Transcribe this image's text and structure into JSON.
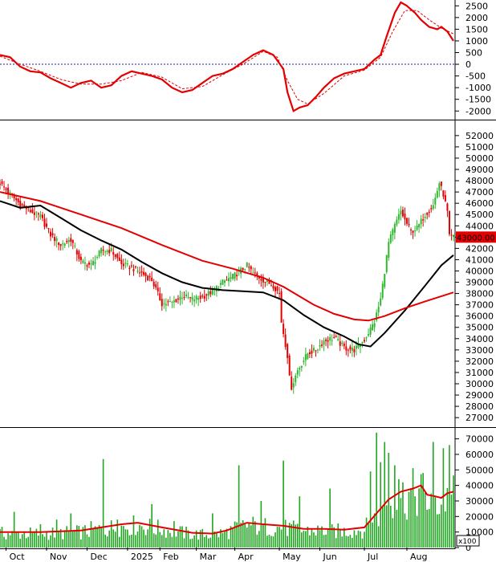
{
  "chart_data": [
    {
      "panel": "oscillator",
      "type": "line",
      "y_ticks": [
        2500,
        2000,
        1500,
        1000,
        500,
        0,
        -500,
        -1000,
        -1500,
        -2000
      ],
      "y_tick_labels": [
        "2500",
        "2000",
        "1500",
        "1000",
        "500",
        "0",
        "-500",
        "-1000",
        "-1500",
        "-2000"
      ],
      "ylim": [
        -2300,
        2750
      ],
      "zero_line": "dotted",
      "series": [
        {
          "color": "#e30000",
          "style": "solid",
          "points": [
            [
              0,
              400
            ],
            [
              5,
              300
            ],
            [
              10,
              -100
            ],
            [
              15,
              -300
            ],
            [
              20,
              -350
            ],
            [
              25,
              -600
            ],
            [
              30,
              -800
            ],
            [
              35,
              -1000
            ],
            [
              40,
              -800
            ],
            [
              45,
              -700
            ],
            [
              50,
              -1000
            ],
            [
              55,
              -900
            ],
            [
              60,
              -500
            ],
            [
              65,
              -300
            ],
            [
              70,
              -400
            ],
            [
              75,
              -500
            ],
            [
              80,
              -650
            ],
            [
              85,
              -1000
            ],
            [
              90,
              -1200
            ],
            [
              95,
              -1100
            ],
            [
              100,
              -800
            ],
            [
              105,
              -500
            ],
            [
              110,
              -400
            ],
            [
              115,
              -200
            ],
            [
              120,
              100
            ],
            [
              125,
              400
            ],
            [
              130,
              600
            ],
            [
              135,
              400
            ],
            [
              140,
              -200
            ],
            [
              142,
              -1200
            ],
            [
              145,
              -2000
            ],
            [
              148,
              -1850
            ],
            [
              152,
              -1750
            ],
            [
              156,
              -1400
            ],
            [
              160,
              -1000
            ],
            [
              165,
              -600
            ],
            [
              170,
              -400
            ],
            [
              175,
              -300
            ],
            [
              180,
              -200
            ],
            [
              185,
              200
            ],
            [
              188,
              400
            ],
            [
              191,
              1200
            ],
            [
              195,
              2200
            ],
            [
              198,
              2650
            ],
            [
              201,
              2500
            ],
            [
              205,
              2200
            ],
            [
              208,
              1900
            ],
            [
              212,
              1600
            ],
            [
              216,
              1500
            ],
            [
              218,
              1600
            ],
            [
              221,
              1400
            ],
            [
              224,
              1000
            ]
          ]
        },
        {
          "color": "#e30000",
          "style": "dashed",
          "points": [
            [
              0,
              350
            ],
            [
              10,
              0
            ],
            [
              20,
              -300
            ],
            [
              30,
              -650
            ],
            [
              40,
              -850
            ],
            [
              50,
              -850
            ],
            [
              60,
              -700
            ],
            [
              70,
              -350
            ],
            [
              80,
              -550
            ],
            [
              90,
              -1050
            ],
            [
              100,
              -950
            ],
            [
              110,
              -450
            ],
            [
              120,
              0
            ],
            [
              130,
              550
            ],
            [
              137,
              300
            ],
            [
              142,
              -700
            ],
            [
              147,
              -1500
            ],
            [
              152,
              -1700
            ],
            [
              160,
              -1250
            ],
            [
              170,
              -500
            ],
            [
              180,
              -250
            ],
            [
              188,
              300
            ],
            [
              194,
              1400
            ],
            [
              200,
              2300
            ],
            [
              206,
              2300
            ],
            [
              212,
              1900
            ],
            [
              218,
              1550
            ],
            [
              224,
              1300
            ]
          ]
        }
      ]
    },
    {
      "panel": "price",
      "type": "candlestick",
      "y_ticks": [
        52000,
        51000,
        50000,
        49000,
        48000,
        47000,
        46000,
        45000,
        44000,
        43000,
        42000,
        41000,
        40000,
        39000,
        38000,
        37000,
        36000,
        35000,
        34000,
        33000,
        32000,
        31000,
        30000,
        29000,
        28000,
        27000
      ],
      "y_tick_labels": [
        "52000",
        "51000",
        "50000",
        "49000",
        "48000",
        "47000",
        "46000",
        "45000",
        "44000",
        "43000",
        "42000",
        "41000",
        "40000",
        "39000",
        "38000",
        "37000",
        "36000",
        "35000",
        "34000",
        "33000",
        "32000",
        "31000",
        "30000",
        "29000",
        "28000",
        "27000"
      ],
      "ylim": [
        26300,
        53200
      ],
      "last_price": 43000,
      "last_price_label": "43000.00",
      "up_color": "#2eb82e",
      "down_color": "#e30000",
      "price_path": [
        [
          0,
          47800
        ],
        [
          5,
          46800
        ],
        [
          10,
          45900
        ],
        [
          15,
          45300
        ],
        [
          20,
          44800
        ],
        [
          25,
          43200
        ],
        [
          30,
          42300
        ],
        [
          35,
          42800
        ],
        [
          40,
          40800
        ],
        [
          45,
          40500
        ],
        [
          50,
          41800
        ],
        [
          55,
          41800
        ],
        [
          60,
          40600
        ],
        [
          65,
          40300
        ],
        [
          70,
          39800
        ],
        [
          75,
          39200
        ],
        [
          80,
          37100
        ],
        [
          85,
          37200
        ],
        [
          90,
          37800
        ],
        [
          95,
          37500
        ],
        [
          100,
          37700
        ],
        [
          105,
          38200
        ],
        [
          110,
          39000
        ],
        [
          115,
          39500
        ],
        [
          120,
          40200
        ],
        [
          122,
          40500
        ],
        [
          125,
          39800
        ],
        [
          130,
          39200
        ],
        [
          135,
          38700
        ],
        [
          138,
          38000
        ],
        [
          139,
          35500
        ],
        [
          142,
          32500
        ],
        [
          143,
          30500
        ],
        [
          144,
          29700
        ],
        [
          147,
          31200
        ],
        [
          152,
          32700
        ],
        [
          156,
          33000
        ],
        [
          160,
          33800
        ],
        [
          165,
          34100
        ],
        [
          170,
          33200
        ],
        [
          175,
          33000
        ],
        [
          180,
          33900
        ],
        [
          185,
          35500
        ],
        [
          188,
          37500
        ],
        [
          190,
          40000
        ],
        [
          192,
          42500
        ],
        [
          195,
          44000
        ],
        [
          198,
          45300
        ],
        [
          200,
          44500
        ],
        [
          203,
          43500
        ],
        [
          206,
          43800
        ],
        [
          210,
          45000
        ],
        [
          214,
          45800
        ],
        [
          217,
          47800
        ],
        [
          219,
          46800
        ],
        [
          221,
          45200
        ],
        [
          222,
          43000
        ]
      ],
      "series": [
        {
          "name": "",
          "color": "#000000",
          "points": [
            [
              0,
              46200
            ],
            [
              10,
              45600
            ],
            [
              20,
              45800
            ],
            [
              30,
              44700
            ],
            [
              40,
              43600
            ],
            [
              50,
              42700
            ],
            [
              60,
              41900
            ],
            [
              70,
              40800
            ],
            [
              80,
              39800
            ],
            [
              90,
              39000
            ],
            [
              100,
              38500
            ],
            [
              110,
              38300
            ],
            [
              120,
              38200
            ],
            [
              130,
              38100
            ],
            [
              140,
              37400
            ],
            [
              150,
              36100
            ],
            [
              160,
              35000
            ],
            [
              170,
              34200
            ],
            [
              177,
              33500
            ],
            [
              183,
              33300
            ],
            [
              190,
              34500
            ],
            [
              200,
              36500
            ],
            [
              210,
              38700
            ],
            [
              218,
              40500
            ],
            [
              224,
              41400
            ]
          ]
        },
        {
          "name": "",
          "color": "#e30000",
          "points": [
            [
              0,
              47000
            ],
            [
              20,
              46200
            ],
            [
              40,
              45000
            ],
            [
              60,
              43800
            ],
            [
              80,
              42300
            ],
            [
              100,
              40900
            ],
            [
              115,
              40200
            ],
            [
              130,
              39400
            ],
            [
              140,
              38600
            ],
            [
              155,
              37000
            ],
            [
              165,
              36200
            ],
            [
              175,
              35700
            ],
            [
              182,
              35600
            ],
            [
              190,
              36000
            ],
            [
              200,
              36700
            ],
            [
              210,
              37300
            ],
            [
              224,
              38100
            ]
          ]
        }
      ]
    },
    {
      "panel": "volume",
      "type": "bar",
      "y_ticks": [
        70000,
        60000,
        50000,
        40000,
        30000,
        20000,
        10000,
        0
      ],
      "y_tick_labels": [
        "70000",
        "60000",
        "50000",
        "40000",
        "30000",
        "20000",
        "10000",
        "0"
      ],
      "ylim": [
        0,
        76000
      ],
      "unit_label": "x100",
      "bar_color": "#21a621",
      "ma_color": "#e30000",
      "spikes": [
        [
          7,
          23000
        ],
        [
          20,
          15000
        ],
        [
          28,
          18000
        ],
        [
          35,
          22000
        ],
        [
          45,
          17000
        ],
        [
          51,
          57000
        ],
        [
          58,
          18000
        ],
        [
          75,
          28000
        ],
        [
          86,
          17000
        ],
        [
          105,
          22000
        ],
        [
          118,
          53000
        ],
        [
          129,
          30000
        ],
        [
          140,
          56000
        ],
        [
          148,
          33000
        ],
        [
          163,
          38000
        ],
        [
          183,
          49000
        ],
        [
          186,
          74000
        ],
        [
          188,
          55000
        ],
        [
          190,
          68000
        ],
        [
          192,
          61000
        ],
        [
          195,
          53000
        ],
        [
          197,
          44000
        ],
        [
          214,
          68000
        ],
        [
          219,
          64000
        ],
        [
          222,
          66000
        ]
      ],
      "ma_points": [
        [
          0,
          10000
        ],
        [
          20,
          10000
        ],
        [
          40,
          11000
        ],
        [
          60,
          15000
        ],
        [
          68,
          16000
        ],
        [
          80,
          13000
        ],
        [
          95,
          9500
        ],
        [
          105,
          9000
        ],
        [
          112,
          11000
        ],
        [
          122,
          16000
        ],
        [
          130,
          15000
        ],
        [
          140,
          14000
        ],
        [
          150,
          12000
        ],
        [
          160,
          12000
        ],
        [
          170,
          11500
        ],
        [
          180,
          13000
        ],
        [
          186,
          22000
        ],
        [
          192,
          31000
        ],
        [
          198,
          36000
        ],
        [
          204,
          38000
        ],
        [
          208,
          40000
        ],
        [
          211,
          34000
        ],
        [
          215,
          33000
        ],
        [
          218,
          32000
        ],
        [
          221,
          35000
        ],
        [
          224,
          36000
        ]
      ]
    }
  ],
  "x_axis": {
    "labels": [
      "Oct",
      "Nov",
      "Dec",
      "2025",
      "Feb",
      "Mar",
      "Apr",
      "May",
      "Jun",
      "Jul",
      "Aug"
    ]
  }
}
